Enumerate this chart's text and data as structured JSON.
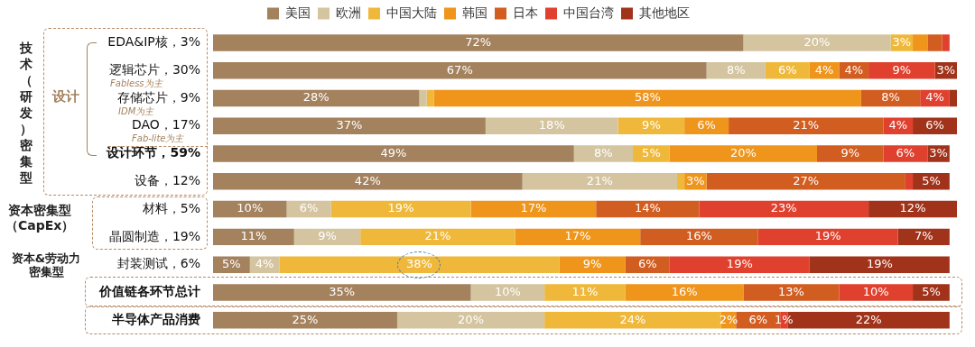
{
  "chart_data": {
    "type": "bar",
    "orientation": "horizontal",
    "stacked": true,
    "legend": "top",
    "categories": [
      "EDA&IP核，3%",
      "逻辑芯片，30%",
      "存储芯片，9%",
      "DAO，17%",
      "设计环节，59%",
      "设备，12%",
      "材料，5%",
      "晶圆制造，19%",
      "封装测试，6%",
      "价值链各环节总计",
      "半导体产品消费"
    ],
    "series": [
      {
        "name": "美国",
        "color": "#a4825e",
        "values": [
          72,
          67,
          28,
          37,
          49,
          42,
          10,
          11,
          5,
          35,
          25
        ],
        "value_labels": [
          "72%",
          "67%",
          "28%",
          "37%",
          "49%",
          "42%",
          "10%",
          "11%",
          "5%",
          "35%",
          "25%"
        ]
      },
      {
        "name": "欧洲",
        "color": "#d4c5a0",
        "values": [
          20,
          8,
          1,
          18,
          8,
          21,
          6,
          9,
          4,
          10,
          20
        ],
        "value_labels": [
          "20%",
          "8%",
          null,
          "18%",
          "8%",
          "21%",
          "6%",
          "9%",
          "4%",
          "10%",
          "20%"
        ]
      },
      {
        "name": "中国大陆",
        "color": "#efb83a",
        "values": [
          3,
          6,
          1,
          9,
          5,
          1,
          19,
          21,
          38,
          11,
          24
        ],
        "value_labels": [
          "3%",
          "6%",
          null,
          "9%",
          "5%",
          null,
          "19%",
          "21%",
          "38%",
          "11%",
          "24%"
        ]
      },
      {
        "name": "韩国",
        "color": "#ef951c",
        "values": [
          2,
          4,
          58,
          6,
          20,
          3,
          17,
          17,
          9,
          16,
          2
        ],
        "value_labels": [
          null,
          "4%",
          "58%",
          "6%",
          "20%",
          "3%",
          "17%",
          "17%",
          "9%",
          "16%",
          "2%"
        ]
      },
      {
        "name": "日本",
        "color": "#d25d20",
        "values": [
          2,
          4,
          8,
          21,
          9,
          27,
          14,
          16,
          6,
          13,
          6
        ],
        "value_labels": [
          null,
          "4%",
          "8%",
          "21%",
          "9%",
          "27%",
          "14%",
          "16%",
          "6%",
          "13%",
          "6%"
        ]
      },
      {
        "name": "中国台湾",
        "color": "#e0412e",
        "values": [
          1,
          9,
          4,
          4,
          6,
          1,
          23,
          19,
          19,
          10,
          1
        ],
        "value_labels": [
          null,
          "9%",
          "4%",
          "4%",
          "6%",
          null,
          "23%",
          "19%",
          "19%",
          "10%",
          "1%"
        ]
      },
      {
        "name": "其他地区",
        "color": "#a0331a",
        "values": [
          0,
          3,
          1,
          6,
          3,
          5,
          12,
          7,
          19,
          5,
          22
        ],
        "value_labels": [
          null,
          "3%",
          null,
          "6%",
          "3%",
          "5%",
          "12%",
          "7%",
          "19%",
          "5%",
          "22%"
        ]
      }
    ],
    "annotations": [
      "技术（研发）密集型",
      "设计",
      "Fabless为主",
      "IDM为主",
      "Fab-lite为主",
      "资本密集型（CapEx）",
      "资本&劳动力密集型"
    ]
  }
}
